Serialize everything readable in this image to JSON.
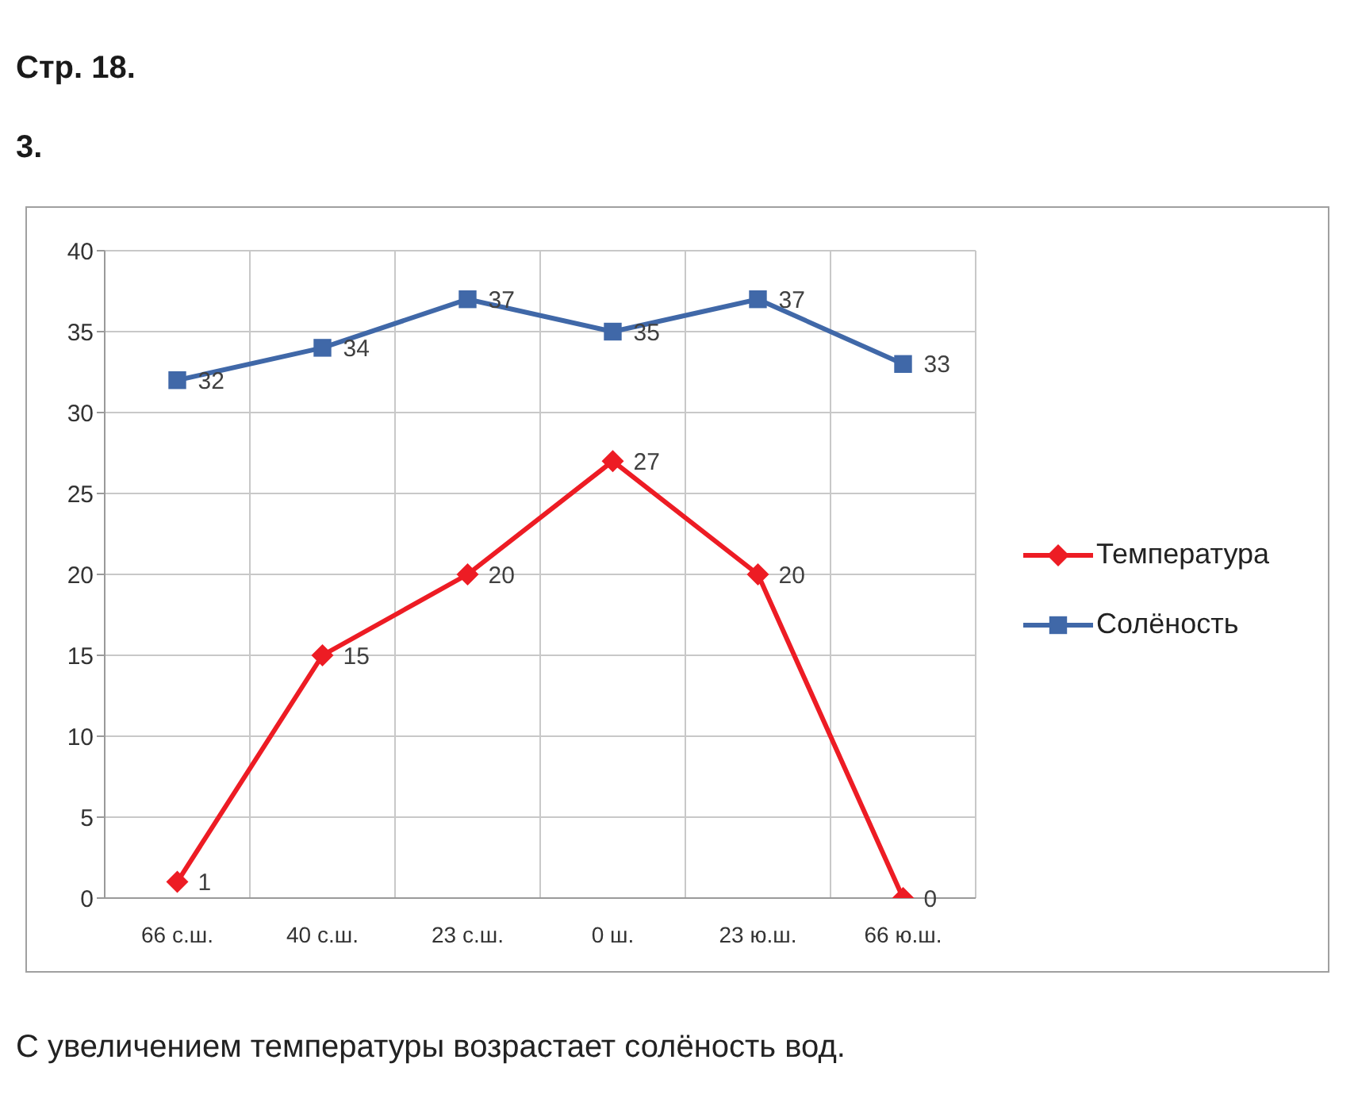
{
  "chart_data": {
    "type": "line",
    "title": "Стр. 18.",
    "subtitle": "3.",
    "annotations": [
      "С увеличением температуры возрастает солёность вод."
    ],
    "categories": [
      "66 с.ш.",
      "40 с.ш.",
      "23 с.ш.",
      "0 ш.",
      "23 ю.ш.",
      "66 ю.ш."
    ],
    "series": [
      {
        "name": "Температура",
        "color": "#ed1c24",
        "marker": "diamond",
        "values": [
          1,
          15,
          20,
          27,
          20,
          0
        ]
      },
      {
        "name": "Солёность",
        "color": "#4068a8",
        "marker": "square",
        "values": [
          32,
          34,
          37,
          35,
          37,
          33
        ]
      }
    ],
    "ylim": [
      0,
      40
    ],
    "yticks": [
      0,
      5,
      10,
      15,
      20,
      25,
      30,
      35,
      40
    ],
    "grid": true,
    "legend": "right",
    "data_labels": true
  }
}
